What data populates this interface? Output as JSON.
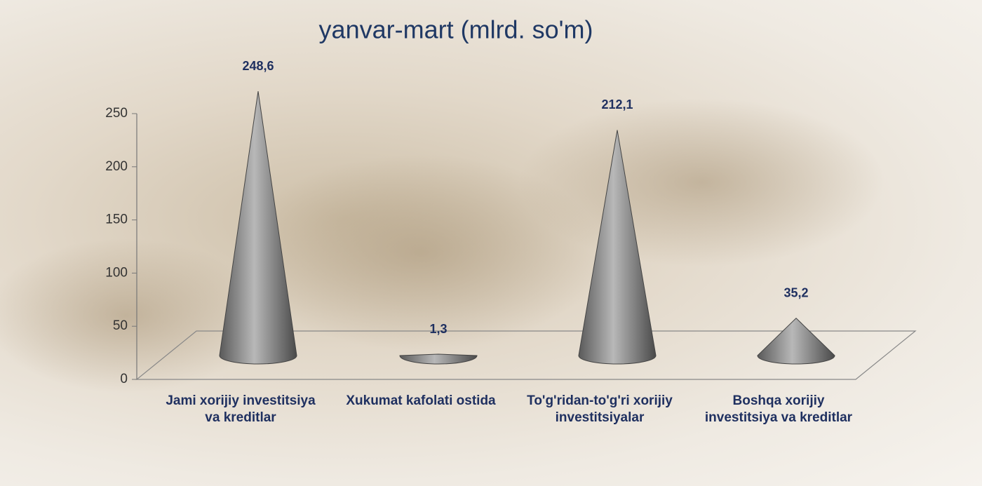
{
  "chart_data": {
    "type": "cone",
    "title": "yanvar-mart (mlrd. so'm)",
    "categories": [
      "Jami xorijiy investitsiya va kreditlar",
      "Xukumat kafolati ostida",
      "To'g'ridan-to'g'ri xorijiy investitsiyalar",
      "Boshqa xorijiy investitsiya va kreditlar"
    ],
    "values": [
      248.6,
      1.3,
      212.1,
      35.2
    ],
    "value_labels": [
      "248,6",
      "1,3",
      "212,1",
      "35,2"
    ],
    "color": "#8c8c8c",
    "ylim": [
      0,
      250
    ],
    "yticks": [
      0,
      50,
      100,
      150,
      200,
      250
    ]
  }
}
